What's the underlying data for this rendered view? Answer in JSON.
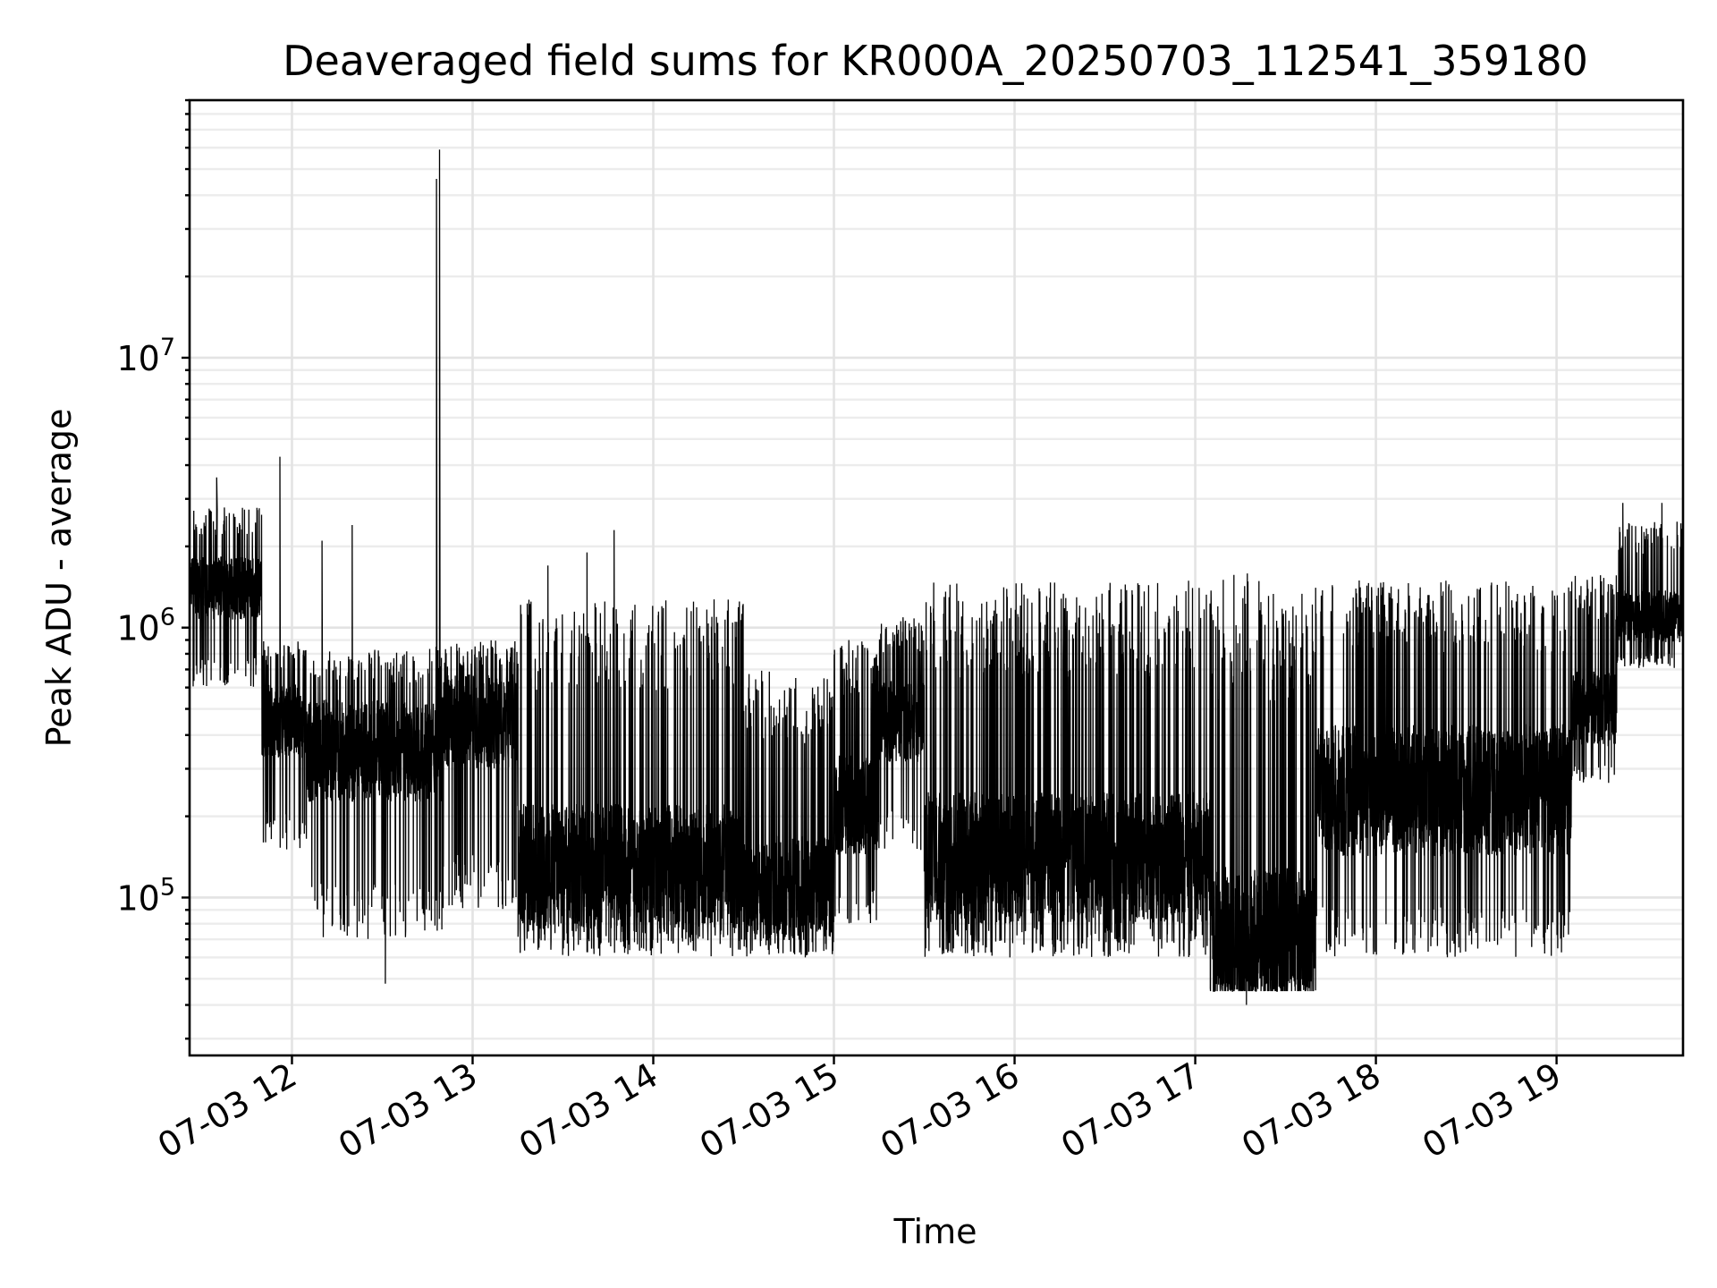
{
  "chart_data": {
    "type": "line",
    "title": "Deaveraged field sums for KR000A_20250703_112541_359180",
    "xlabel": "Time",
    "ylabel": "Peak ADU - average",
    "yscale": "log",
    "xlim": [
      "2025-07-03T11:26",
      "2025-07-03T19:42"
    ],
    "ylim": [
      26000,
      90000000
    ],
    "grid": true,
    "x_ticks": [
      {
        "at": "2025-07-03T12:00",
        "label": "07-03 12"
      },
      {
        "at": "2025-07-03T13:00",
        "label": "07-03 13"
      },
      {
        "at": "2025-07-03T14:00",
        "label": "07-03 14"
      },
      {
        "at": "2025-07-03T15:00",
        "label": "07-03 15"
      },
      {
        "at": "2025-07-03T16:00",
        "label": "07-03 16"
      },
      {
        "at": "2025-07-03T17:00",
        "label": "07-03 17"
      },
      {
        "at": "2025-07-03T18:00",
        "label": "07-03 18"
      },
      {
        "at": "2025-07-03T19:00",
        "label": "07-03 19"
      }
    ],
    "y_ticks": [
      {
        "at": 100000,
        "base": "10",
        "exp": "5"
      },
      {
        "at": 1000000,
        "base": "10",
        "exp": "6"
      },
      {
        "at": 10000000,
        "base": "10",
        "exp": "7"
      }
    ],
    "series": [
      {
        "color": "#000000",
        "segments": [
          {
            "from": "2025-07-03T11:26",
            "to": "2025-07-03T11:50",
            "median": 1400000,
            "low": 600000,
            "high": 2800000
          },
          {
            "from": "2025-07-03T11:50",
            "to": "2025-07-03T12:05",
            "median": 450000,
            "low": 150000,
            "high": 900000
          },
          {
            "from": "2025-07-03T12:05",
            "to": "2025-07-03T12:50",
            "median": 350000,
            "low": 70000,
            "high": 850000
          },
          {
            "from": "2025-07-03T12:50",
            "to": "2025-07-03T13:15",
            "median": 450000,
            "low": 90000,
            "high": 900000
          },
          {
            "from": "2025-07-03T13:15",
            "to": "2025-07-03T14:30",
            "median": 130000,
            "low": 60000,
            "high": 1300000
          },
          {
            "from": "2025-07-03T14:30",
            "to": "2025-07-03T15:00",
            "median": 110000,
            "low": 60000,
            "high": 700000
          },
          {
            "from": "2025-07-03T15:00",
            "to": "2025-07-03T15:15",
            "median": 220000,
            "low": 80000,
            "high": 900000
          },
          {
            "from": "2025-07-03T15:15",
            "to": "2025-07-03T15:30",
            "median": 450000,
            "low": 150000,
            "high": 1100000
          },
          {
            "from": "2025-07-03T15:30",
            "to": "2025-07-03T17:05",
            "median": 140000,
            "low": 60000,
            "high": 1500000
          },
          {
            "from": "2025-07-03T17:05",
            "to": "2025-07-03T17:40",
            "median": 70000,
            "low": 45000,
            "high": 1600000
          },
          {
            "from": "2025-07-03T17:40",
            "to": "2025-07-03T19:05",
            "median": 250000,
            "low": 60000,
            "high": 1500000
          },
          {
            "from": "2025-07-03T19:05",
            "to": "2025-07-03T19:20",
            "median": 500000,
            "low": 260000,
            "high": 1600000
          },
          {
            "from": "2025-07-03T19:20",
            "to": "2025-07-03T19:42",
            "median": 1100000,
            "low": 700000,
            "high": 2500000
          }
        ],
        "spikes": [
          {
            "x": "2025-07-03T11:35",
            "y": 3600000
          },
          {
            "x": "2025-07-03T11:56",
            "y": 4300000
          },
          {
            "x": "2025-07-03T12:10",
            "y": 2100000
          },
          {
            "x": "2025-07-03T12:20",
            "y": 2400000
          },
          {
            "x": "2025-07-03T12:31",
            "y": 48000
          },
          {
            "x": "2025-07-03T12:48",
            "y": 46000000
          },
          {
            "x": "2025-07-03T12:49",
            "y": 59000000
          },
          {
            "x": "2025-07-03T13:25",
            "y": 1700000
          },
          {
            "x": "2025-07-03T13:38",
            "y": 1900000
          },
          {
            "x": "2025-07-03T13:47",
            "y": 2300000
          },
          {
            "x": "2025-07-03T17:17",
            "y": 40000
          },
          {
            "x": "2025-07-03T19:22",
            "y": 2900000
          },
          {
            "x": "2025-07-03T19:35",
            "y": 2900000
          }
        ]
      }
    ]
  }
}
